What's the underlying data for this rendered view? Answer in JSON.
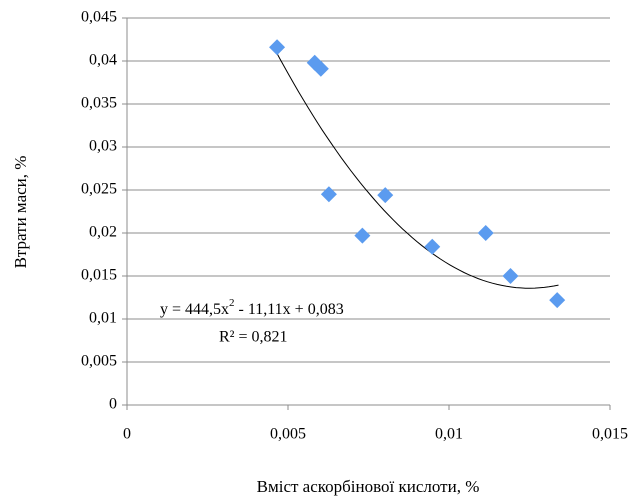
{
  "chart_data": {
    "type": "scatter",
    "x_label": "Вміст аскорбінової кислоти, %",
    "y_label": "Втрати маси, %",
    "series": [
      {
        "name": "Втрати маси",
        "color": "#5b9bef",
        "x": [
          0.00466,
          0.00583,
          0.00602,
          0.00627,
          0.00731,
          0.00802,
          0.00948,
          0.01114,
          0.01191,
          0.01336
        ],
        "values": [
          0.0416,
          0.0398,
          0.0391,
          0.0245,
          0.0197,
          0.0244,
          0.0184,
          0.02,
          0.015,
          0.0122
        ]
      }
    ],
    "trendline": {
      "coefficients": [
        444.5,
        -11.11,
        0.083
      ],
      "x_range": [
        0.0046,
        0.0134
      ],
      "color": "#000000",
      "equation": [
        "y = 444,5x",
        "2",
        " - 11,11x + 0,083"
      ],
      "r_squared": "R² = 0,821"
    },
    "xlim": [
      0,
      0.015
    ],
    "xticks": [
      0,
      {
        "value": 0.005,
        "label": "0,005"
      },
      {
        "value": 0.01,
        "label": "0,01"
      },
      {
        "value": 0.015,
        "label": "0,015"
      }
    ],
    "ylim": [
      0,
      0.045
    ],
    "yticks": [
      0,
      {
        "value": 0.005,
        "label": "0,005"
      },
      {
        "value": 0.01,
        "label": "0,01"
      },
      {
        "value": 0.015,
        "label": "0,015"
      },
      {
        "value": 0.02,
        "label": "0,02"
      },
      {
        "value": 0.025,
        "label": "0,025"
      },
      {
        "value": 0.03,
        "label": "0,03"
      },
      {
        "value": 0.035,
        "label": "0,035"
      },
      {
        "value": 0.04,
        "label": "0,04"
      },
      {
        "value": 0.045,
        "label": "0,045"
      }
    ],
    "grid": true
  }
}
